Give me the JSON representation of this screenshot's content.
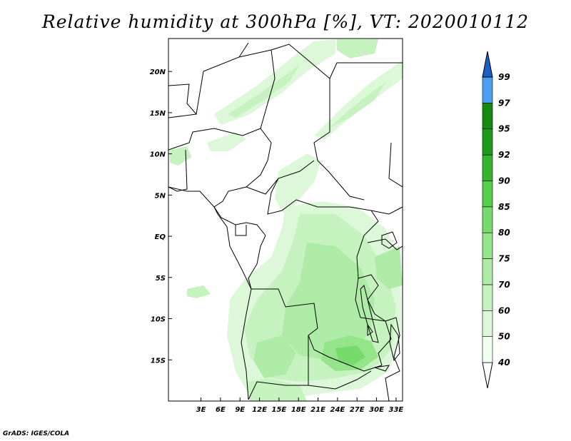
{
  "title": "Relative humidity at 300hPa [%], VT: 2020010112",
  "credit": "GrADS: IGES/COLA",
  "map": {
    "lon_range": [
      -2,
      34
    ],
    "lat_range": [
      -20,
      24
    ],
    "x_ticks": [
      {
        "value": 3,
        "label": "3E"
      },
      {
        "value": 6,
        "label": "6E"
      },
      {
        "value": 9,
        "label": "9E"
      },
      {
        "value": 12,
        "label": "12E"
      },
      {
        "value": 15,
        "label": "15E"
      },
      {
        "value": 18,
        "label": "18E"
      },
      {
        "value": 21,
        "label": "21E"
      },
      {
        "value": 24,
        "label": "24E"
      },
      {
        "value": 27,
        "label": "27E"
      },
      {
        "value": 30,
        "label": "30E"
      },
      {
        "value": 33,
        "label": "33E"
      }
    ],
    "y_ticks": [
      {
        "value": 20,
        "label": "20N"
      },
      {
        "value": 15,
        "label": "15N"
      },
      {
        "value": 10,
        "label": "10N"
      },
      {
        "value": 5,
        "label": "5N"
      },
      {
        "value": 0,
        "label": "EQ"
      },
      {
        "value": -5,
        "label": "5S"
      },
      {
        "value": -10,
        "label": "10S"
      },
      {
        "value": -15,
        "label": "15S"
      }
    ]
  },
  "colorbar": {
    "levels": [
      {
        "label": "40",
        "color": "#f0fff0"
      },
      {
        "label": "50",
        "color": "#dcf8d8"
      },
      {
        "label": "60",
        "color": "#c6f2c0"
      },
      {
        "label": "70",
        "color": "#aeeba6"
      },
      {
        "label": "75",
        "color": "#94e48a"
      },
      {
        "label": "80",
        "color": "#76db6c"
      },
      {
        "label": "85",
        "color": "#56cf4c"
      },
      {
        "label": "90",
        "color": "#36b42e"
      },
      {
        "label": "92",
        "color": "#1e9a1a"
      },
      {
        "label": "95",
        "color": "#148a12"
      },
      {
        "label": "97",
        "color": "#4aa0ee"
      },
      {
        "label": "99",
        "color": "#2a78d8"
      }
    ],
    "top_color": "#1a5ec8",
    "bottom_color": "#ffffff"
  }
}
